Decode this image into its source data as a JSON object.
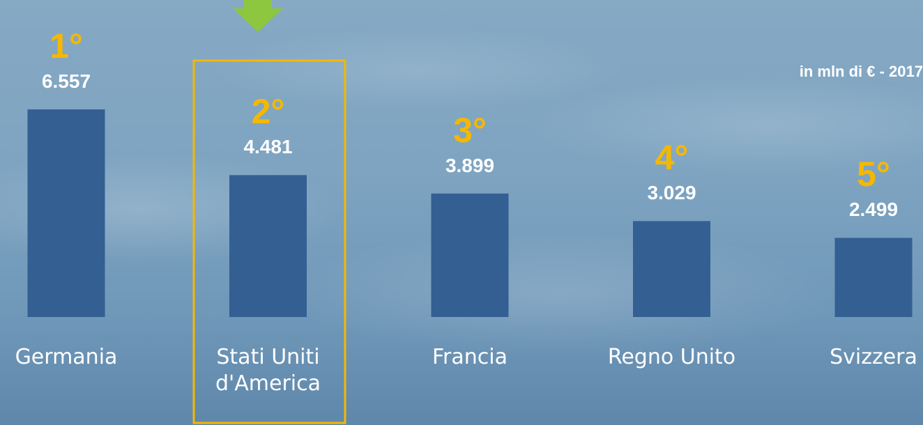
{
  "chart_data": {
    "type": "bar",
    "subtitle": "in mln di € - 2017",
    "categories": [
      "Germania",
      "Stati Uniti d'America",
      "Francia",
      "Regno Unito",
      "Svizzera"
    ],
    "values": [
      6557,
      4481,
      3899,
      3029,
      2499
    ],
    "value_labels": [
      "6.557",
      "4.481",
      "3.899",
      "3.029",
      "2.499"
    ],
    "rank_labels": [
      "1°",
      "2°",
      "3°",
      "4°",
      "5°"
    ],
    "color": "#345f93"
  }
}
